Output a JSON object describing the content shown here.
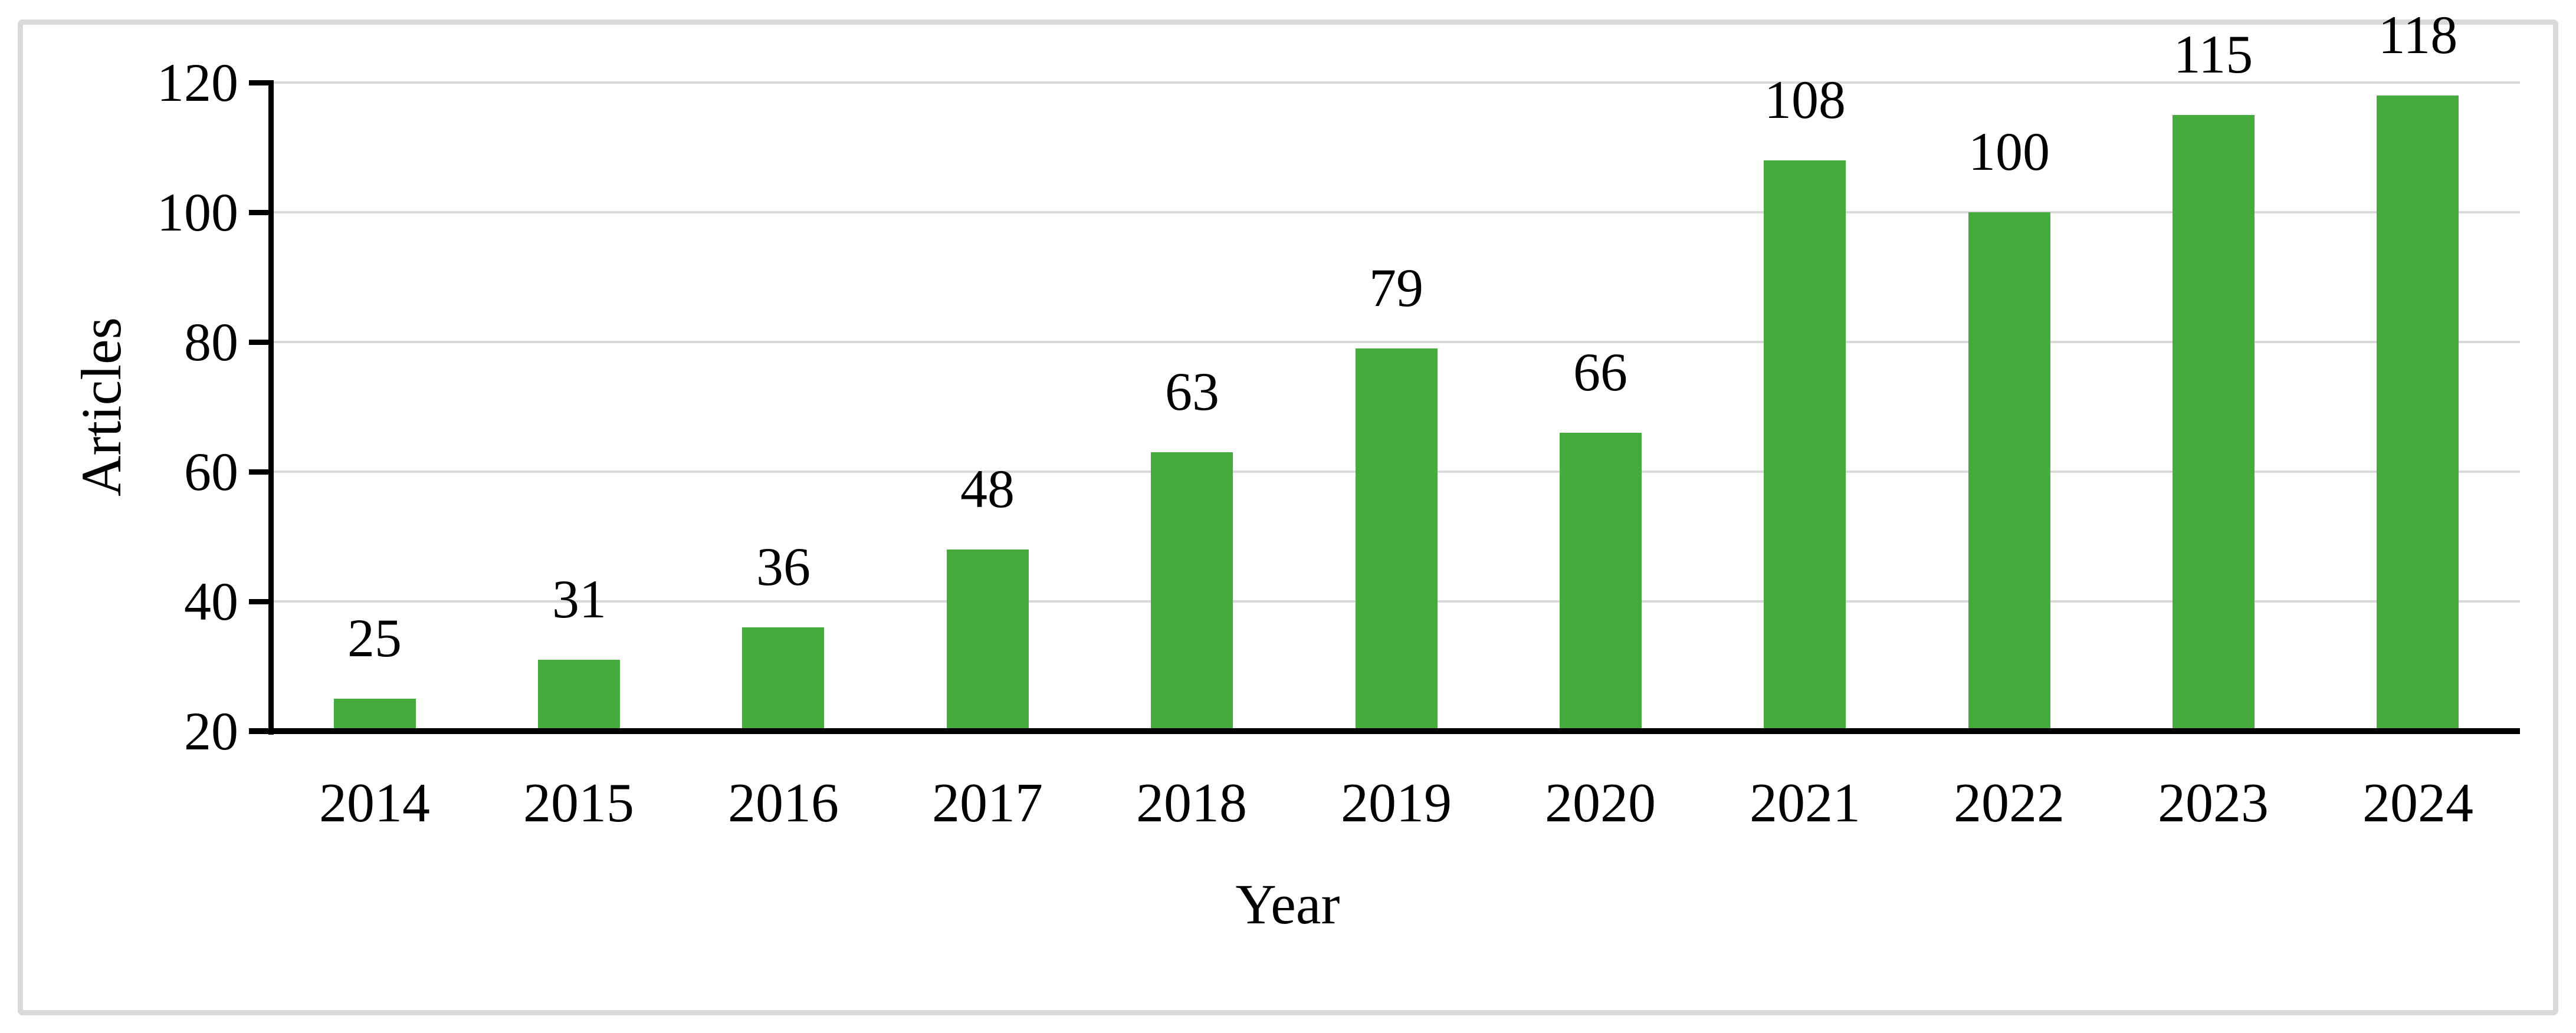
{
  "figure": {
    "background": "#ffffff",
    "frame_border_color": "#d9d9d9"
  },
  "chart_data": {
    "type": "bar",
    "title": "",
    "xlabel": "Year",
    "ylabel": "Articles",
    "categories": [
      "2014",
      "2015",
      "2016",
      "2017",
      "2018",
      "2019",
      "2020",
      "2021",
      "2022",
      "2023",
      "2024"
    ],
    "values": [
      25,
      31,
      36,
      48,
      63,
      79,
      66,
      108,
      100,
      115,
      118
    ],
    "ylim": [
      20,
      120
    ],
    "yticks": [
      20,
      40,
      60,
      80,
      100,
      120
    ],
    "grid": "horizontal",
    "legend": "none",
    "bar_color": "#46ab3c",
    "gridline_color": "#d9d9d9",
    "axis_color": "#000000",
    "label_color": "#000000"
  }
}
